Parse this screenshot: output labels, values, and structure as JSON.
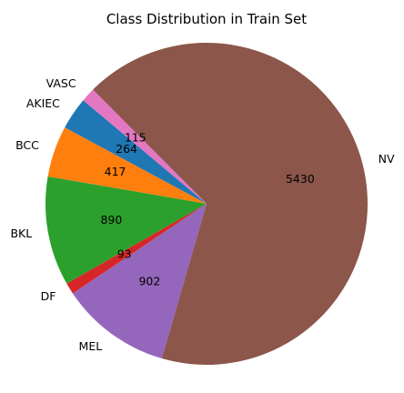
{
  "chart_data": {
    "type": "pie",
    "title": "Class Distribution in Train Set",
    "categories": [
      "AKIEC",
      "BCC",
      "BKL",
      "DF",
      "MEL",
      "NV",
      "VASC"
    ],
    "values": [
      264,
      417,
      890,
      93,
      902,
      5430,
      115
    ],
    "colors": [
      "#1f77b4",
      "#ff7f0e",
      "#2ca02c",
      "#d62728",
      "#9467bd",
      "#8c564b",
      "#e377c2"
    ],
    "start_angle_deg": 140,
    "direction": "counterclockwise",
    "legend": "none"
  }
}
